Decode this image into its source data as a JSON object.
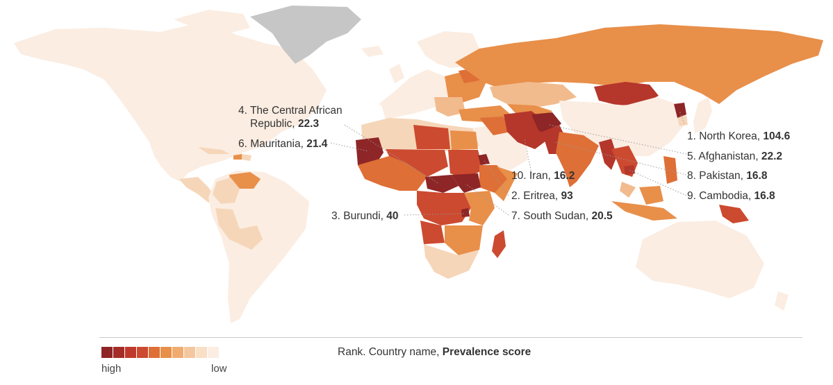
{
  "map": {
    "colors": {
      "sea": "#ffffff",
      "lowest": "#fbede2",
      "low": "#f6d6b9",
      "light": "#f2bb8d",
      "mid": "#e88f4a",
      "midhigh": "#de6f36",
      "high": "#cc4a30",
      "higher": "#b5362b",
      "highest": "#8e2526",
      "nodata": "#c6c6c6"
    }
  },
  "callouts": [
    {
      "id": "north-korea",
      "rank_name": "1. North Korea, ",
      "score": "104.6"
    },
    {
      "id": "eritrea",
      "rank_name": "2. Eritrea, ",
      "score": "93"
    },
    {
      "id": "burundi",
      "rank_name": "3. Burundi, ",
      "score": "40"
    },
    {
      "id": "car",
      "rank_name_line1": "4. The Central African",
      "rank_name_line2": "Republic, ",
      "score": "22.3"
    },
    {
      "id": "afghanistan",
      "rank_name": "5. Afghanistan, ",
      "score": "22.2"
    },
    {
      "id": "mauritania",
      "rank_name": "6. Mauritania, ",
      "score": "21.4"
    },
    {
      "id": "south-sudan",
      "rank_name": "7. South Sudan, ",
      "score": "20.5"
    },
    {
      "id": "pakistan",
      "rank_name": "8. Pakistan, ",
      "score": "16.8"
    },
    {
      "id": "cambodia",
      "rank_name": "9. Cambodia, ",
      "score": "16.8"
    },
    {
      "id": "iran",
      "rank_name": "10. Iran, ",
      "score": "16.2"
    }
  ],
  "legend": {
    "swatches": [
      "#8e2526",
      "#a42d28",
      "#c0392d",
      "#cc4a30",
      "#de6f36",
      "#e88f4a",
      "#f0ac70",
      "#f4c79e",
      "#f8dfc5",
      "#fbede2"
    ],
    "high_label": "high",
    "low_label": "low",
    "caption_plain": "Rank. Country name, ",
    "caption_bold": "Prevalence score"
  }
}
